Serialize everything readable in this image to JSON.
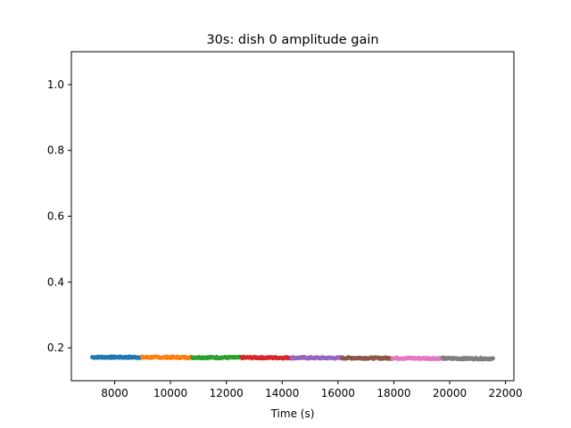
{
  "chart_data": {
    "type": "scatter",
    "title": "30s: dish 0 amplitude gain",
    "xlabel": "Time (s)",
    "ylabel": "",
    "xlim": [
      6450,
      22300
    ],
    "ylim": [
      0.1,
      1.1
    ],
    "xticks": [
      8000,
      10000,
      12000,
      14000,
      16000,
      18000,
      20000,
      22000
    ],
    "yticks": [
      0.2,
      0.4,
      0.6,
      0.8,
      1.0
    ],
    "xtick_labels": [
      "8000",
      "10000",
      "12000",
      "14000",
      "16000",
      "18000",
      "20000",
      "22000"
    ],
    "ytick_labels": [
      "0.2",
      "0.4",
      "0.6",
      "0.8",
      "1.0"
    ],
    "grid": false,
    "legend": "none",
    "series": [
      {
        "color": "#1f77b4",
        "x_range": [
          7200,
          8980
        ],
        "y_start": 0.1715,
        "y_end": 0.1712
      },
      {
        "color": "#ff7f0e",
        "x_range": [
          8980,
          10780
        ],
        "y_start": 0.1712,
        "y_end": 0.1708
      },
      {
        "color": "#2ca02c",
        "x_range": [
          10780,
          12550
        ],
        "y_start": 0.1708,
        "y_end": 0.1703
      },
      {
        "color": "#d62728",
        "x_range": [
          12550,
          14330
        ],
        "y_start": 0.1703,
        "y_end": 0.1698
      },
      {
        "color": "#9467bd",
        "x_range": [
          14330,
          16150
        ],
        "y_start": 0.1698,
        "y_end": 0.1692
      },
      {
        "color": "#8c564b",
        "x_range": [
          16150,
          17950
        ],
        "y_start": 0.1692,
        "y_end": 0.1685
      },
      {
        "color": "#e377c2",
        "x_range": [
          17950,
          19750
        ],
        "y_start": 0.1685,
        "y_end": 0.1678
      },
      {
        "color": "#7f7f7f",
        "x_range": [
          19750,
          21550
        ],
        "y_start": 0.1678,
        "y_end": 0.167
      }
    ]
  }
}
